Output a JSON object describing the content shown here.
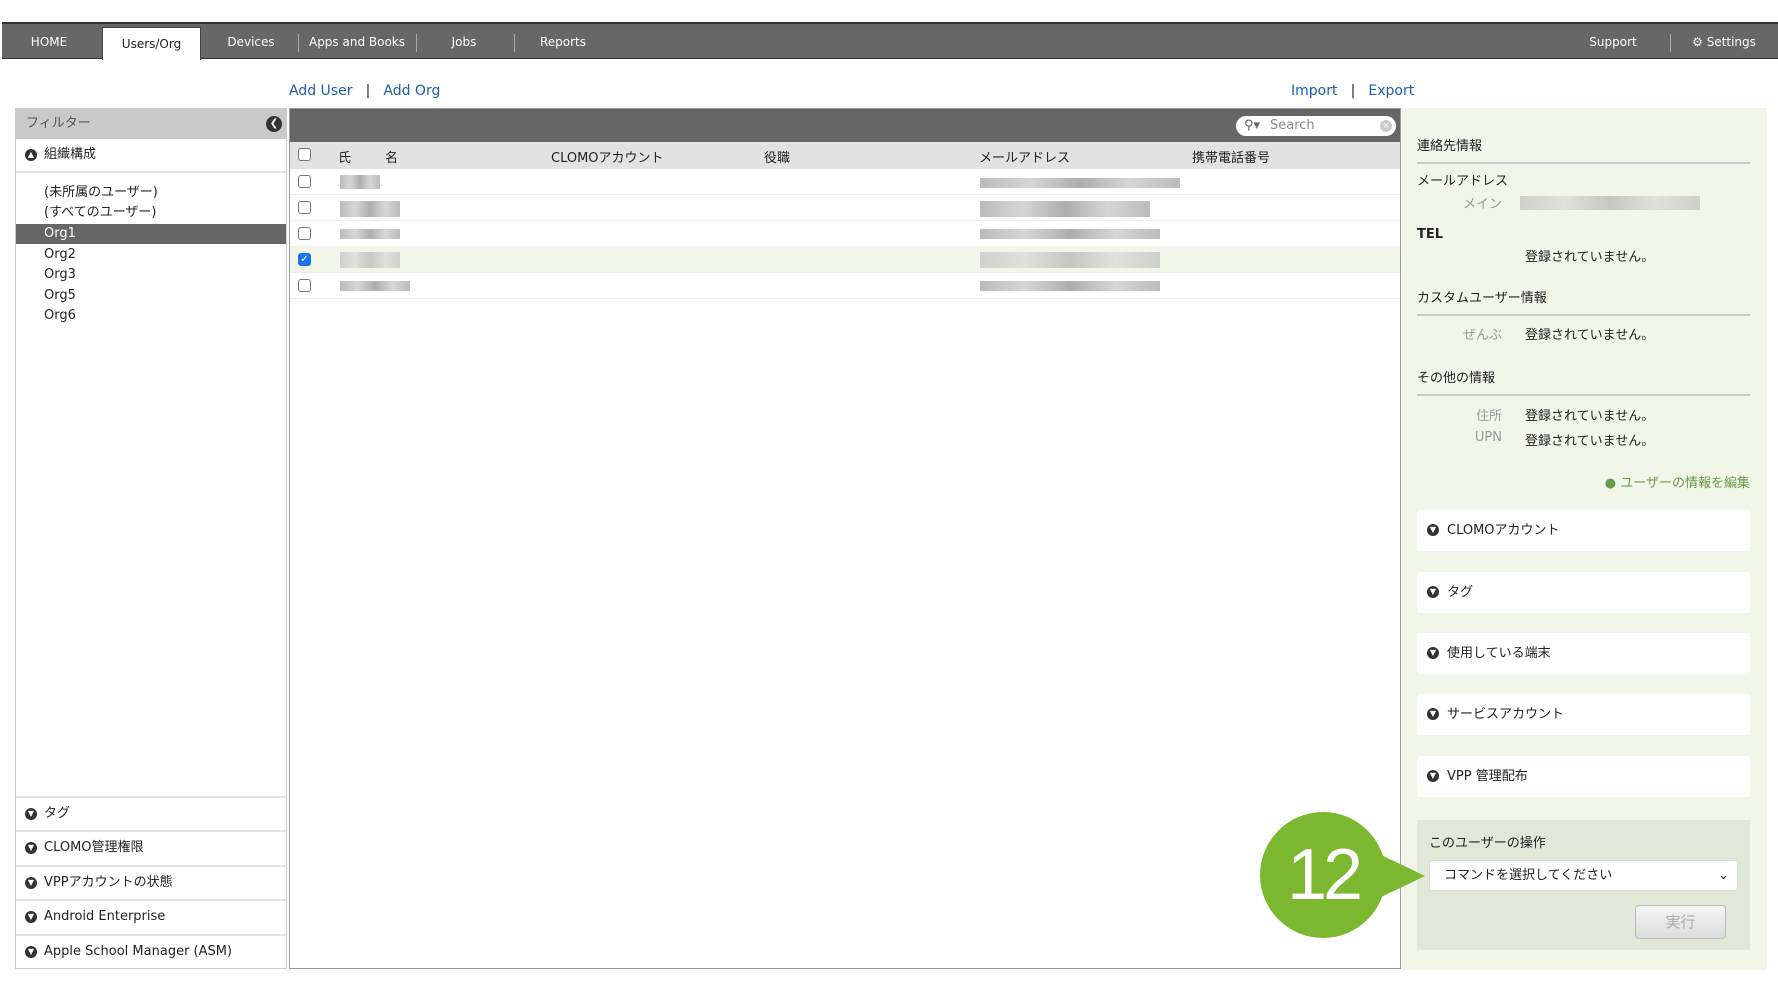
{
  "nav": {
    "tabs": [
      "HOME",
      "Users/Org",
      "Devices",
      "Apps and Books",
      "Jobs",
      "Reports"
    ],
    "active_tab": "Users/Org",
    "support": "Support",
    "settings": "Settings"
  },
  "actions": {
    "add_user": "Add User",
    "add_org": "Add Org",
    "import": "Import",
    "export": "Export"
  },
  "filter": {
    "title": "フィルター",
    "org_section": "組織構成",
    "orgs": [
      "(未所属のユーザー)",
      "(すべてのユーザー)",
      "Org1",
      "Org2",
      "Org3",
      "Org5",
      "Org6"
    ],
    "selected_org": "Org1",
    "sections": [
      "タグ",
      "CLOMO管理権限",
      "VPPアカウントの状態",
      "Android Enterprise",
      "Apple School Manager (ASM)"
    ]
  },
  "table": {
    "search_placeholder": "Search",
    "columns": [
      "氏",
      "名",
      "CLOMOアカウント",
      "役職",
      "メールアドレス",
      "携帯電話番号"
    ],
    "row_checked": [
      false,
      false,
      false,
      true,
      false
    ]
  },
  "detail": {
    "contact_title": "連絡先情報",
    "email_label": "メールアドレス",
    "email_main_label": "メイン",
    "tel_label": "TEL",
    "not_registered": "登録されていません。",
    "custom_title": "カスタムユーザー情報",
    "custom_all_label": "ぜんぶ",
    "other_title": "その他の情報",
    "address_label": "住所",
    "upn_label": "UPN",
    "edit_link": "ユーザーの情報を編集",
    "sections": [
      "CLOMOアカウント",
      "タグ",
      "使用している端末",
      "サービスアカウント",
      "VPP 管理配布"
    ],
    "ops_title": "このユーザーの操作",
    "command_select": "コマンドを選択してください",
    "execute": "実行"
  },
  "annotation": {
    "badge": "12",
    "color": "#7cb82f"
  }
}
